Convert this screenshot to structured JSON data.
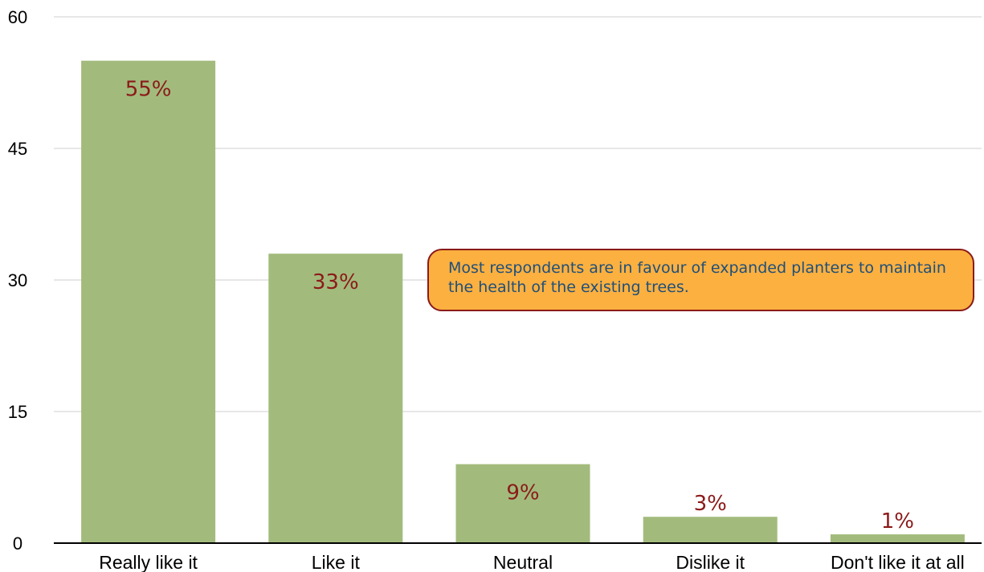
{
  "chart_data": {
    "type": "bar",
    "categories": [
      "Really like it",
      "Like it",
      "Neutral",
      "Dislike it",
      "Don't like it at all"
    ],
    "values": [
      55,
      33,
      9,
      3,
      1
    ],
    "data_labels": [
      "55%",
      "33%",
      "9%",
      "3%",
      "1%"
    ],
    "ylim": [
      0,
      60
    ],
    "yticks": [
      0,
      15,
      30,
      45,
      60
    ],
    "ytick_labels": [
      "0",
      "15",
      "30",
      "45",
      "60"
    ],
    "grid": true,
    "title": "",
    "xlabel": "",
    "ylabel": ""
  },
  "colors": {
    "bar": "#a2bb7c",
    "data_label": "#8b1a1a",
    "gridline": "#cfcfcf",
    "axis": "#000000",
    "callout_fill": "#fbb040",
    "callout_border": "#8b1a1a",
    "callout_text": "#1f4f7a"
  },
  "annotation": {
    "text": "Most respondents are in favour of expanded planters to maintain the health of the existing trees."
  }
}
